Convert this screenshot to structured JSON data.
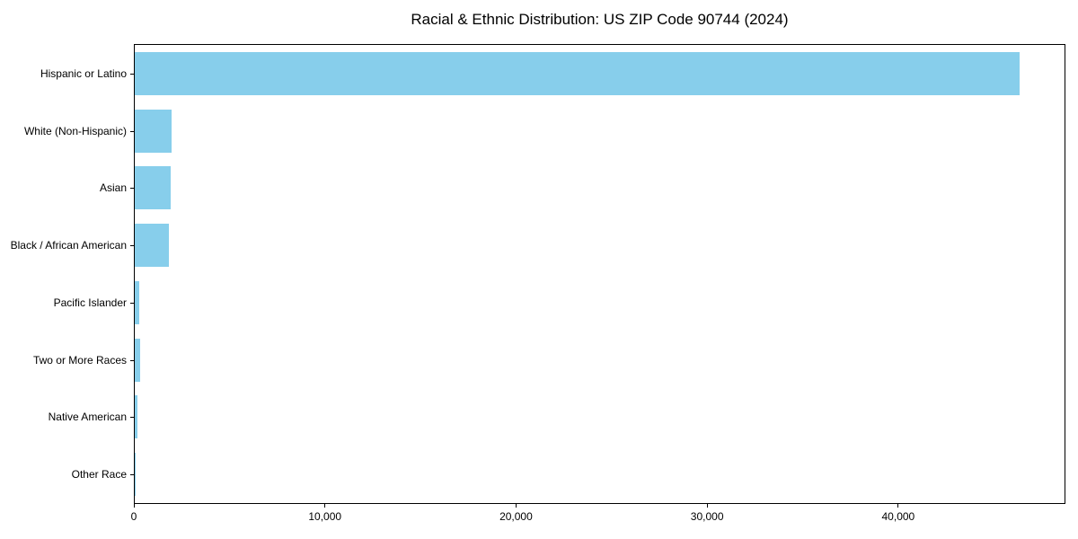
{
  "chart_data": {
    "type": "bar",
    "orientation": "horizontal",
    "title": "Racial & Ethnic Distribution: US ZIP Code 90744 (2024)",
    "categories": [
      "Hispanic or Latino",
      "White (Non-Hispanic)",
      "Asian",
      "Black / African American",
      "Pacific Islander",
      "Two or More Races",
      "Native American",
      "Other Race"
    ],
    "values": [
      46400,
      1950,
      1870,
      1800,
      240,
      290,
      120,
      30
    ],
    "xlabel": "",
    "ylabel": "",
    "xlim": [
      0,
      48750
    ],
    "xticks": [
      0,
      10000,
      20000,
      30000,
      40000
    ],
    "xtick_labels": [
      "0",
      "10,000",
      "20,000",
      "30,000",
      "40,000"
    ],
    "bar_color": "#87CEEB",
    "frame_color": "#000000",
    "background_color": "#ffffff",
    "grid": false,
    "legend": null
  }
}
